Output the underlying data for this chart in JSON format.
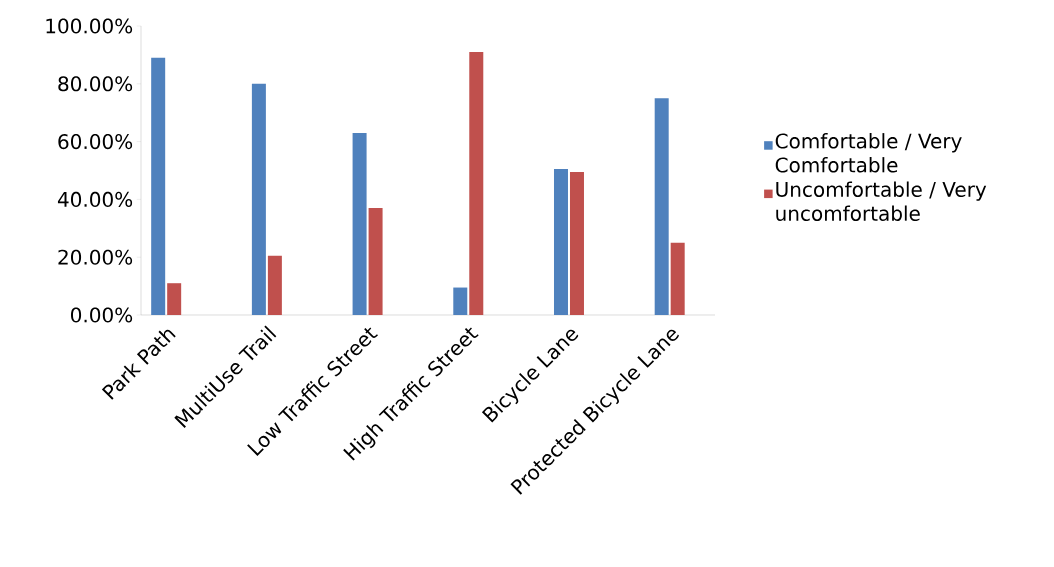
{
  "chart_data": {
    "type": "bar",
    "categories": [
      "Park Path",
      "MultiUse Trail",
      "Low Traffic Street",
      "High Traffic Street",
      "Bicycle Lane",
      "Protected Bicycle Lane"
    ],
    "series": [
      {
        "name": "Comfortable / Very Comfortable",
        "color": "#4f81bd",
        "values": [
          89,
          80,
          63,
          9.5,
          50.5,
          75
        ]
      },
      {
        "name": "Uncomfortable / Very uncomfortable",
        "color": "#c0504d",
        "values": [
          11,
          20.5,
          37,
          91,
          49.5,
          25
        ]
      }
    ],
    "ylim": [
      0,
      100
    ],
    "yticks": [
      {
        "value": 0,
        "label": "0.00%"
      },
      {
        "value": 20,
        "label": "20.00%"
      },
      {
        "value": 40,
        "label": "40.00%"
      },
      {
        "value": 60,
        "label": "60.00%"
      },
      {
        "value": 80,
        "label": "80.00%"
      },
      {
        "value": 100,
        "label": "100.00%"
      }
    ],
    "grid": false,
    "legend": "right"
  }
}
